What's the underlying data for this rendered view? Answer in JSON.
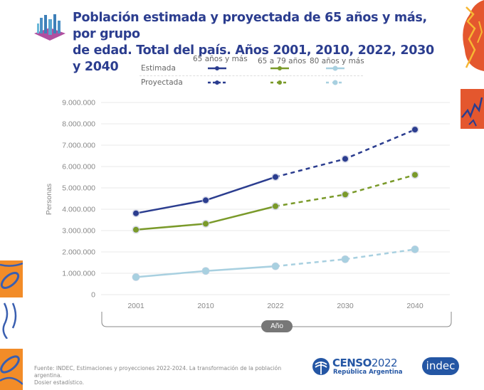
{
  "header": {
    "title_line1": "Población estimada y proyectada de 65 años y más, por grupo",
    "title_line2": "de edad. Total del país. Años 2001, 2010, 2022, 2030 y 2040",
    "icon": "city-model-icon"
  },
  "legend": {
    "columns": [
      "65 años y más",
      "65 a 79 años",
      "80 años y más"
    ],
    "rows": [
      "Estimada",
      "Proyectada"
    ]
  },
  "colors": {
    "total": "#2b3d8f",
    "age_65_79": "#7a9a2a",
    "age_80_plus": "#a8d0e0",
    "grid": "#e8e8e8",
    "axis_text": "#888888",
    "title": "#2b3d8f",
    "brand": "#2456a4"
  },
  "chart_data": {
    "type": "line",
    "title": "Población estimada y proyectada de 65 años y más, por grupo de edad. Total del país. Años 2001, 2010, 2022, 2030 y 2040",
    "xlabel": "Año",
    "ylabel": "Personas",
    "categories": [
      "2001",
      "2010",
      "2022",
      "2030",
      "2040"
    ],
    "ylim": [
      0,
      9000000
    ],
    "yticks": [
      0,
      1000000,
      2000000,
      3000000,
      4000000,
      5000000,
      6000000,
      7000000,
      8000000,
      9000000
    ],
    "ytick_labels": [
      "0",
      "1.000.000",
      "2.000.000",
      "3.000.000",
      "4.000.000",
      "5.000.000",
      "6.000.000",
      "7.000.000",
      "8.000.000",
      "9.000.000"
    ],
    "grid": true,
    "legend_position": "top",
    "estimated_until_index": 2,
    "series": [
      {
        "name": "65 años y más",
        "key": "total",
        "values": [
          3810000,
          4420000,
          5510000,
          6360000,
          7730000
        ]
      },
      {
        "name": "65 a 79 años",
        "key": "age_65_79",
        "values": [
          3040000,
          3320000,
          4140000,
          4690000,
          5610000
        ]
      },
      {
        "name": "80 años y más",
        "key": "age_80_plus",
        "values": [
          820000,
          1110000,
          1330000,
          1660000,
          2120000
        ]
      }
    ]
  },
  "footer": {
    "source_line1": "Fuente: INDEC, Estimaciones y proyecciones 2022-2024. La transformación de la población argentina.",
    "source_line2": "Dosier estadístico.",
    "censo_logo_main": "CENSO",
    "censo_logo_year": "2022",
    "censo_logo_sub": "República Argentina",
    "indec_logo": "indec"
  }
}
